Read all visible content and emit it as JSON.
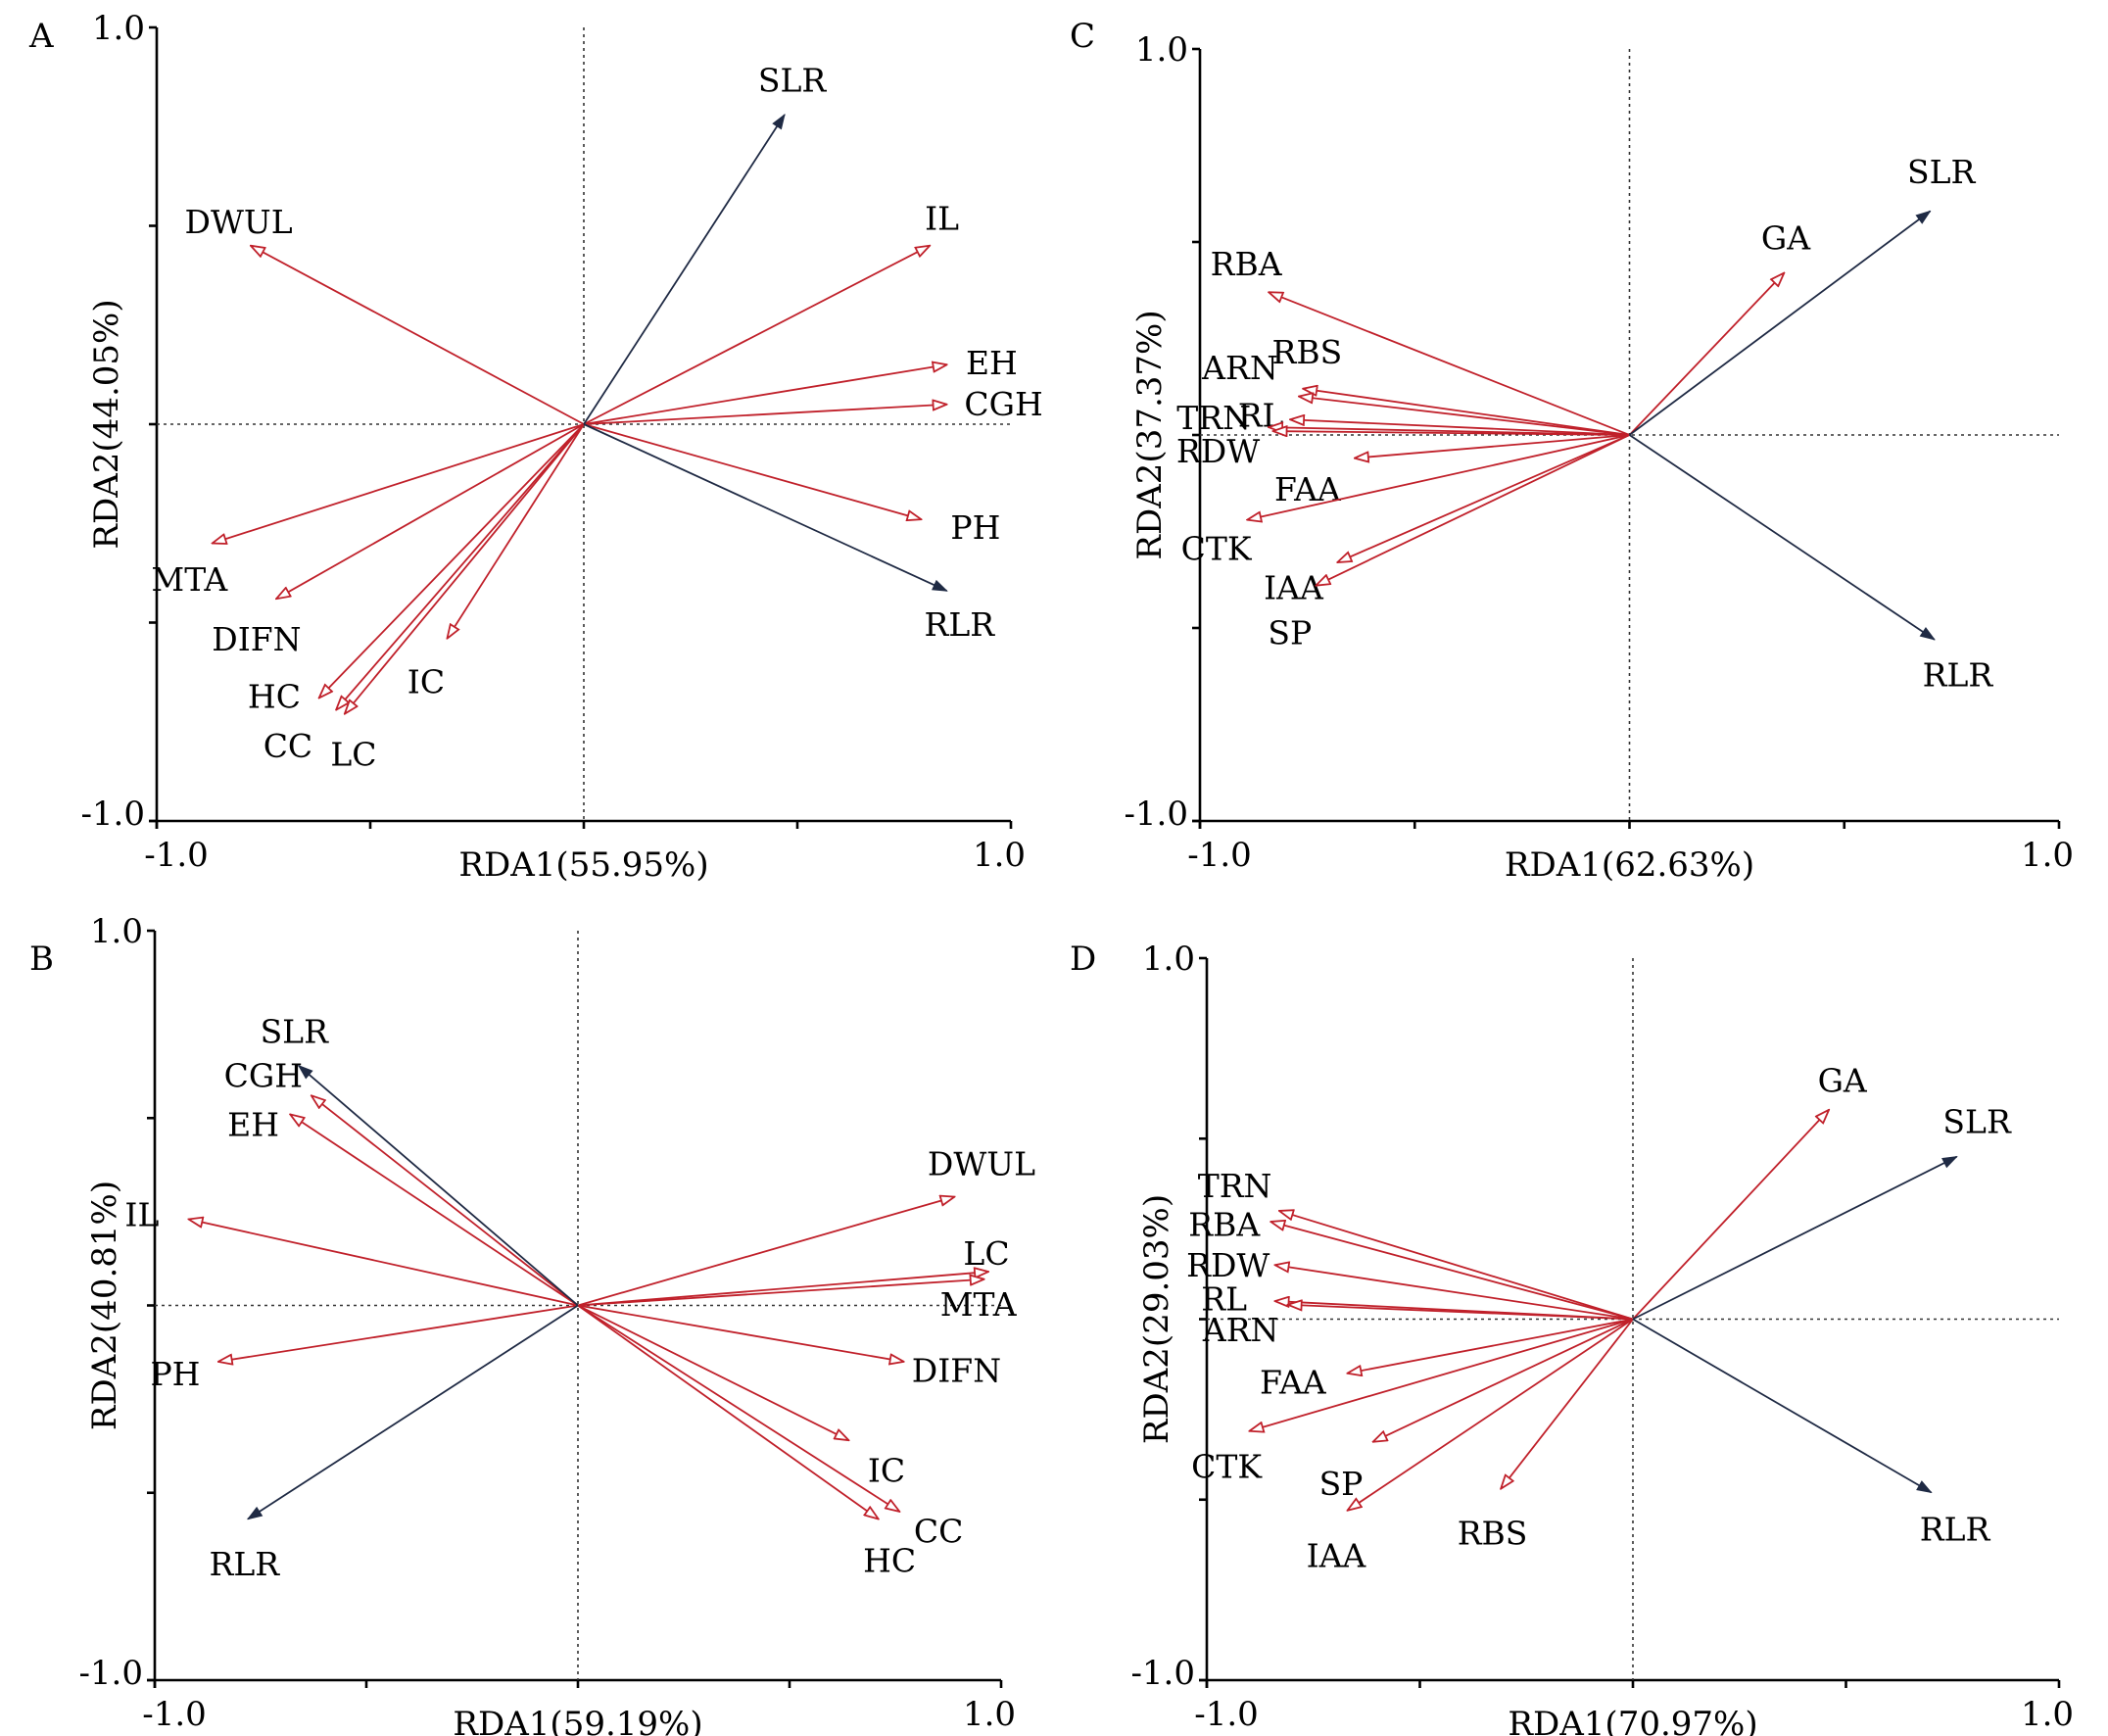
{
  "colors": {
    "response": "#1f2a44",
    "explanatory": "#c0202a",
    "axis": "#000000"
  },
  "chart_data": [
    {
      "type": "scatter",
      "panel": "A",
      "xlabel": "RDA1(55.95%)",
      "ylabel": "RDA2(44.05%)",
      "xlim": [
        -1.0,
        1.0
      ],
      "ylim": [
        -1.0,
        1.0
      ],
      "xticklabels": [
        "-1.0",
        "1.0"
      ],
      "yticklabels": [
        "1.0",
        "-1.0"
      ],
      "response_vectors": [
        {
          "name": "SLR",
          "x": 0.47,
          "y": 0.78
        },
        {
          "name": "RLR",
          "x": 0.85,
          "y": -0.42
        }
      ],
      "explanatory_vectors": [
        {
          "name": "DWUL",
          "x": -0.78,
          "y": 0.45
        },
        {
          "name": "IL",
          "x": 0.81,
          "y": 0.45
        },
        {
          "name": "EH",
          "x": 0.85,
          "y": 0.15
        },
        {
          "name": "CGH",
          "x": 0.85,
          "y": 0.05
        },
        {
          "name": "PH",
          "x": 0.79,
          "y": -0.24
        },
        {
          "name": "MTA",
          "x": -0.87,
          "y": -0.3
        },
        {
          "name": "DIFN",
          "x": -0.72,
          "y": -0.44
        },
        {
          "name": "HC",
          "x": -0.62,
          "y": -0.69
        },
        {
          "name": "CC",
          "x": -0.58,
          "y": -0.72
        },
        {
          "name": "LC",
          "x": -0.56,
          "y": -0.73
        },
        {
          "name": "IC",
          "x": -0.32,
          "y": -0.54
        }
      ]
    },
    {
      "type": "scatter",
      "panel": "C",
      "xlabel": "RDA1(62.63%)",
      "ylabel": "RDA2(37.37%)",
      "xlim": [
        -1.0,
        1.0
      ],
      "ylim": [
        -1.0,
        1.0
      ],
      "xticklabels": [
        "-1.0",
        "1.0"
      ],
      "yticklabels": [
        "1.0",
        "-1.0"
      ],
      "response_vectors": [
        {
          "name": "SLR",
          "x": 0.7,
          "y": 0.58
        },
        {
          "name": "RLR",
          "x": 0.71,
          "y": -0.53
        }
      ],
      "explanatory_vectors": [
        {
          "name": "GA",
          "x": 0.36,
          "y": 0.42
        },
        {
          "name": "RBA",
          "x": -0.84,
          "y": 0.37
        },
        {
          "name": "RBS",
          "x": -0.76,
          "y": 0.12
        },
        {
          "name": "ARN",
          "x": -0.77,
          "y": 0.1
        },
        {
          "name": "RL",
          "x": -0.79,
          "y": 0.04
        },
        {
          "name": "TRN",
          "x": -0.84,
          "y": 0.02
        },
        {
          "name": "RDW",
          "x": -0.83,
          "y": 0.01
        },
        {
          "name": "FAA",
          "x": -0.64,
          "y": -0.06
        },
        {
          "name": "CTK",
          "x": -0.89,
          "y": -0.22
        },
        {
          "name": "IAA",
          "x": -0.68,
          "y": -0.33
        },
        {
          "name": "SP",
          "x": -0.73,
          "y": -0.39
        }
      ]
    },
    {
      "type": "scatter",
      "panel": "B",
      "xlabel": "RDA1(59.19%)",
      "ylabel": "RDA2(40.81%)",
      "xlim": [
        -1.0,
        1.0
      ],
      "ylim": [
        -1.0,
        1.0
      ],
      "xticklabels": [
        "-1.0",
        "1.0"
      ],
      "yticklabels": [
        "1.0",
        "-1.0"
      ],
      "response_vectors": [
        {
          "name": "SLR",
          "x": -0.66,
          "y": 0.64
        },
        {
          "name": "RLR",
          "x": -0.78,
          "y": -0.57
        }
      ],
      "explanatory_vectors": [
        {
          "name": "CGH",
          "x": -0.63,
          "y": 0.56
        },
        {
          "name": "EH",
          "x": -0.68,
          "y": 0.51
        },
        {
          "name": "IL",
          "x": -0.92,
          "y": 0.23
        },
        {
          "name": "PH",
          "x": -0.85,
          "y": -0.15
        },
        {
          "name": "DWUL",
          "x": 0.89,
          "y": 0.29
        },
        {
          "name": "LC",
          "x": 0.97,
          "y": 0.09
        },
        {
          "name": "MTA",
          "x": 0.96,
          "y": 0.07
        },
        {
          "name": "DIFN",
          "x": 0.77,
          "y": -0.15
        },
        {
          "name": "IC",
          "x": 0.64,
          "y": -0.36
        },
        {
          "name": "CC",
          "x": 0.76,
          "y": -0.55
        },
        {
          "name": "HC",
          "x": 0.71,
          "y": -0.57
        }
      ]
    },
    {
      "type": "scatter",
      "panel": "D",
      "xlabel": "RDA1(70.97%)",
      "ylabel": "RDA2(29.03%)",
      "xlim": [
        -1.0,
        1.0
      ],
      "ylim": [
        -1.0,
        1.0
      ],
      "xticklabels": [
        "-1.0",
        "1.0"
      ],
      "yticklabels": [
        "1.0",
        "-1.0"
      ],
      "response_vectors": [
        {
          "name": "SLR",
          "x": 0.76,
          "y": 0.45
        },
        {
          "name": "RLR",
          "x": 0.7,
          "y": -0.48
        }
      ],
      "explanatory_vectors": [
        {
          "name": "GA",
          "x": 0.46,
          "y": 0.58
        },
        {
          "name": "TRN",
          "x": -0.83,
          "y": 0.3
        },
        {
          "name": "RBA",
          "x": -0.85,
          "y": 0.27
        },
        {
          "name": "RDW",
          "x": -0.84,
          "y": 0.15
        },
        {
          "name": "RL",
          "x": -0.84,
          "y": 0.05
        },
        {
          "name": "ARN",
          "x": -0.81,
          "y": 0.04
        },
        {
          "name": "FAA",
          "x": -0.67,
          "y": -0.15
        },
        {
          "name": "CTK",
          "x": -0.9,
          "y": -0.31
        },
        {
          "name": "SP",
          "x": -0.61,
          "y": -0.34
        },
        {
          "name": "IAA",
          "x": -0.67,
          "y": -0.53
        },
        {
          "name": "RBS",
          "x": -0.31,
          "y": -0.47
        }
      ]
    }
  ]
}
